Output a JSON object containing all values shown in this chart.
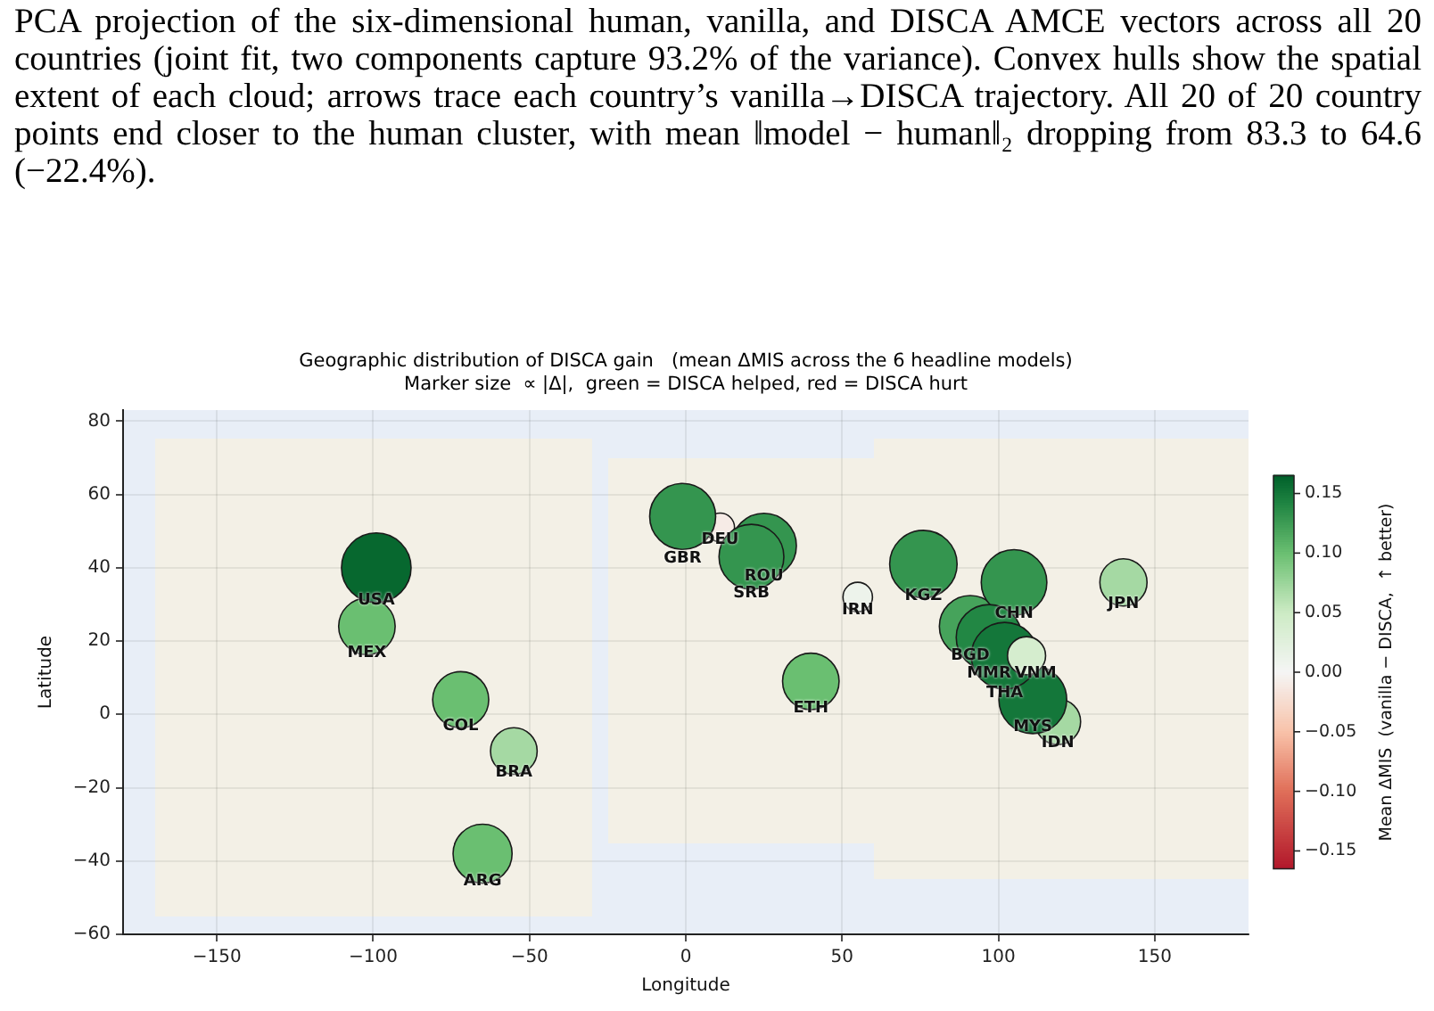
{
  "chart_data": {
    "type": "bubble",
    "title": "Geographic distribution of DISCA gain   (mean ΔMIS across the 6 headline models)",
    "subtitle": "Marker size  ∝ |Δ|,  green = DISCA helped, red = DISCA hurt",
    "xlabel": "Longitude",
    "ylabel": "Latitude",
    "clabel": "Mean ΔMIS  (vanilla − DISCA,  ↑ better)",
    "annotations": [
      "PCA projection of the six-dimensional human, vanilla, and DISCA AMCE vectors across all 20 countries (joint fit, two components capture 93.2% of the variance). Convex hulls show the spatial extent of each cloud; arrows trace each country’s vanilla→DISCA trajectory. All 20 of 20 country points end closer to the human cluster, with mean ‖model − human‖₂ dropping from 83.3 to 64.6 (−22.4%)."
    ],
    "xlim": [
      -180,
      180
    ],
    "xticks": [
      -150,
      -100,
      -50,
      0,
      50,
      100,
      150
    ],
    "ylim": [
      -60,
      83
    ],
    "yticks": [
      -60,
      -40,
      -20,
      0,
      20,
      40,
      60,
      80
    ],
    "clim": [
      -0.165,
      0.165
    ],
    "cticks": [
      {
        "value": -0.15,
        "label": "−0.15"
      },
      {
        "value": -0.1,
        "label": "−0.10"
      },
      {
        "value": -0.05,
        "label": "−0.05"
      },
      {
        "value": 0,
        "label": "0.00"
      },
      {
        "value": 0.05,
        "label": "0.05"
      },
      {
        "value": 0.1,
        "label": "0.10"
      },
      {
        "value": 0.15,
        "label": "0.15"
      }
    ],
    "grid": true,
    "marker": "circle",
    "series": [
      {
        "name": "ARG",
        "x": [
          -65
        ],
        "values": [
          -38
        ],
        "sizes": [
          0.72
        ],
        "cvalues": [
          0.1
        ]
      },
      {
        "name": "BGD",
        "x": [
          91
        ],
        "values": [
          24
        ],
        "sizes": [
          0.79
        ],
        "cvalues": [
          0.12
        ]
      },
      {
        "name": "BRA",
        "x": [
          -55
        ],
        "values": [
          -10
        ],
        "sizes": [
          0.45
        ],
        "cvalues": [
          0.07
        ]
      },
      {
        "name": "CHN",
        "x": [
          105
        ],
        "values": [
          36
        ],
        "sizes": [
          0.89
        ],
        "cvalues": [
          0.13
        ]
      },
      {
        "name": "COL",
        "x": [
          -72
        ],
        "values": [
          4
        ],
        "sizes": [
          0.65
        ],
        "cvalues": [
          0.1
        ]
      },
      {
        "name": "DEU",
        "x": [
          11
        ],
        "values": [
          51
        ],
        "sizes": [
          0.17
        ],
        "cvalues": [
          -0.01
        ]
      },
      {
        "name": "ETH",
        "x": [
          40
        ],
        "values": [
          9
        ],
        "sizes": [
          0.66
        ],
        "cvalues": [
          0.1
        ]
      },
      {
        "name": "GBR",
        "x": [
          -1
        ],
        "values": [
          54
        ],
        "sizes": [
          0.9
        ],
        "cvalues": [
          0.13
        ]
      },
      {
        "name": "IDN",
        "x": [
          119
        ],
        "values": [
          -2
        ],
        "sizes": [
          0.43
        ],
        "cvalues": [
          0.07
        ]
      },
      {
        "name": "IRN",
        "x": [
          55
        ],
        "values": [
          32
        ],
        "sizes": [
          0.18
        ],
        "cvalues": [
          0.01
        ]
      },
      {
        "name": "JPN",
        "x": [
          140
        ],
        "values": [
          36
        ],
        "sizes": [
          0.46
        ],
        "cvalues": [
          0.07
        ]
      },
      {
        "name": "KGZ",
        "x": [
          76
        ],
        "values": [
          41
        ],
        "sizes": [
          0.94
        ],
        "cvalues": [
          0.13
        ]
      },
      {
        "name": "MEX",
        "x": [
          -102
        ],
        "values": [
          24
        ],
        "sizes": [
          0.66
        ],
        "cvalues": [
          0.1
        ]
      },
      {
        "name": "MMR",
        "x": [
          97
        ],
        "values": [
          21
        ],
        "sizes": [
          0.89
        ],
        "cvalues": [
          0.14
        ]
      },
      {
        "name": "MYS",
        "x": [
          111
        ],
        "values": [
          4
        ],
        "sizes": [
          0.95
        ],
        "cvalues": [
          0.15
        ]
      },
      {
        "name": "ROU",
        "x": [
          25
        ],
        "values": [
          46
        ],
        "sizes": [
          0.87
        ],
        "cvalues": [
          0.13
        ]
      },
      {
        "name": "SRB",
        "x": [
          21
        ],
        "values": [
          43
        ],
        "sizes": [
          0.87
        ],
        "cvalues": [
          0.13
        ]
      },
      {
        "name": "THA",
        "x": [
          102
        ],
        "values": [
          16
        ],
        "sizes": [
          0.92
        ],
        "cvalues": [
          0.15
        ]
      },
      {
        "name": "USA",
        "x": [
          -99
        ],
        "values": [
          40
        ],
        "sizes": [
          1
        ],
        "cvalues": [
          0.16
        ]
      },
      {
        "name": "VNM",
        "x": [
          109
        ],
        "values": [
          16
        ],
        "sizes": [
          0.3
        ],
        "cvalues": [
          0.04
        ]
      }
    ]
  }
}
